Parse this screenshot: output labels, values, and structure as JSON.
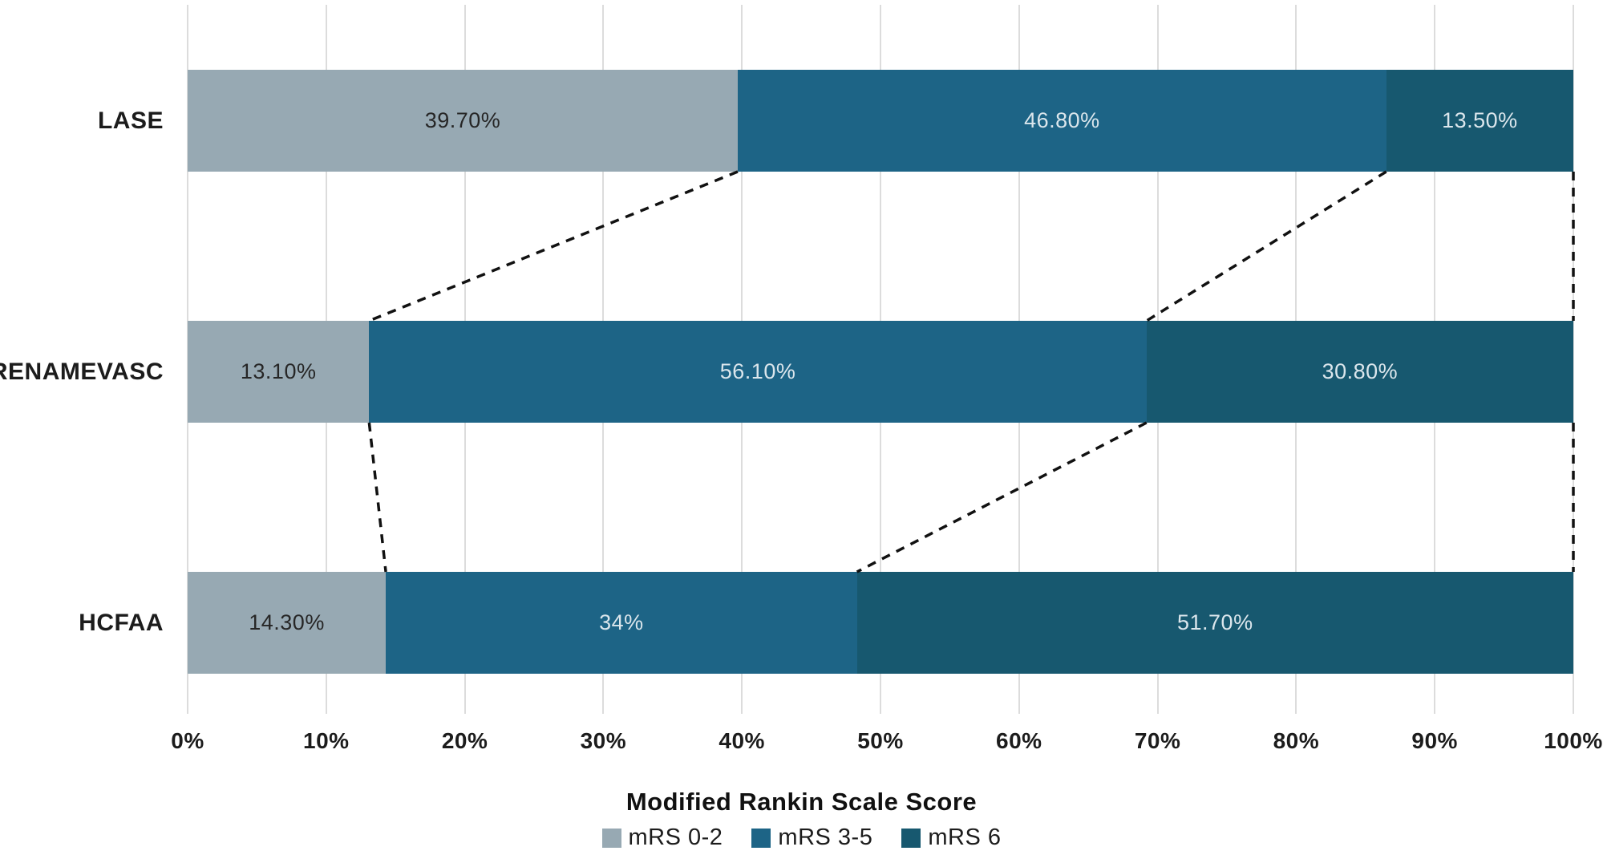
{
  "chart_data": {
    "type": "bar",
    "orientation": "horizontal-stacked",
    "categories": [
      "LASE",
      "RENAMEVASC",
      "HCFAA"
    ],
    "series": [
      {
        "name": "mRS 0-2",
        "color": "#97a9b3",
        "values": [
          39.7,
          13.1,
          14.3
        ],
        "labels": [
          "39.70%",
          "13.10%",
          "14.30%"
        ]
      },
      {
        "name": "mRS 3-5",
        "color": "#1d6486",
        "values": [
          46.8,
          56.1,
          34.0
        ],
        "labels": [
          "46.80%",
          "56.10%",
          "34%"
        ]
      },
      {
        "name": "mRS 6",
        "color": "#17586f",
        "values": [
          13.5,
          30.8,
          51.7
        ],
        "labels": [
          "13.50%",
          "30.80%",
          "51.70%"
        ]
      }
    ],
    "title": "",
    "xlabel": "Modified Rankin Scale Score",
    "ylabel": "",
    "xlim": [
      0,
      100
    ],
    "x_ticks": [
      "0%",
      "10%",
      "20%",
      "30%",
      "40%",
      "50%",
      "60%",
      "70%",
      "80%",
      "90%",
      "100%"
    ],
    "grid": "vertical",
    "legend_position": "bottom",
    "connectors": "dashed lines linking stacked-segment boundaries between adjacent bars"
  },
  "colors": {
    "grid": "#dcdcdc",
    "connector": "#111111",
    "label_on_light": "#262626",
    "label_on_dark": "#dbe6ec",
    "background": "#ffffff"
  }
}
